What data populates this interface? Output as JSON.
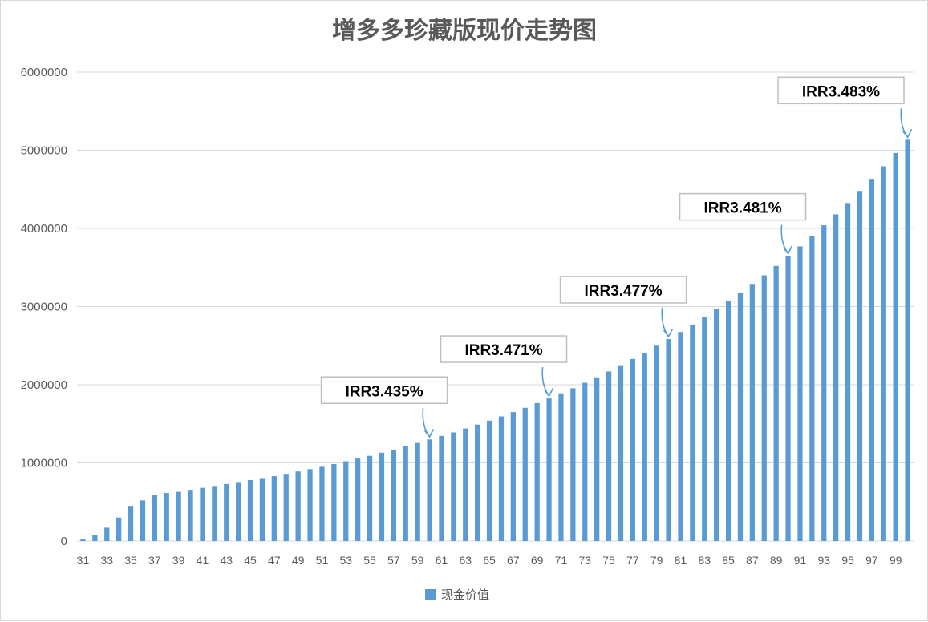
{
  "chart_data": {
    "type": "bar",
    "title": "增多多珍藏版现价走势图",
    "xlabel": "",
    "ylabel": "",
    "ylim": [
      0,
      6000000
    ],
    "yticks": [
      "0",
      "1000000",
      "2000000",
      "3000000",
      "4000000",
      "5000000",
      "6000000"
    ],
    "grid": true,
    "legend_position": "bottom",
    "colors": {
      "bar": "#5b9bd5",
      "grid": "#d9d9d9",
      "text": "#595959"
    },
    "categories": [
      31,
      32,
      33,
      34,
      35,
      36,
      37,
      38,
      39,
      40,
      41,
      42,
      43,
      44,
      45,
      46,
      47,
      48,
      49,
      50,
      51,
      52,
      53,
      54,
      55,
      56,
      57,
      58,
      59,
      60,
      61,
      62,
      63,
      64,
      65,
      66,
      67,
      68,
      69,
      70,
      71,
      72,
      73,
      74,
      75,
      76,
      77,
      78,
      79,
      80,
      81,
      82,
      83,
      84,
      85,
      86,
      87,
      88,
      89,
      90,
      91,
      92,
      93,
      94,
      95,
      96,
      97,
      98,
      99,
      100
    ],
    "xtick_labels": [
      "31",
      "33",
      "35",
      "37",
      "39",
      "41",
      "43",
      "45",
      "47",
      "49",
      "51",
      "53",
      "55",
      "57",
      "59",
      "61",
      "63",
      "65",
      "67",
      "69",
      "71",
      "73",
      "75",
      "77",
      "79",
      "81",
      "83",
      "85",
      "87",
      "89",
      "91",
      "93",
      "95",
      "97",
      "99"
    ],
    "series": [
      {
        "name": "现金价值",
        "values": [
          20000,
          80000,
          170000,
          300000,
          450000,
          520000,
          590000,
          615000,
          630000,
          655000,
          680000,
          705000,
          730000,
          755000,
          780000,
          805000,
          830000,
          860000,
          890000,
          920000,
          950000,
          985000,
          1020000,
          1055000,
          1090000,
          1130000,
          1170000,
          1210000,
          1255000,
          1300000,
          1345000,
          1390000,
          1440000,
          1490000,
          1540000,
          1595000,
          1650000,
          1705000,
          1765000,
          1825000,
          1890000,
          1955000,
          2025000,
          2095000,
          2170000,
          2250000,
          2330000,
          2410000,
          2500000,
          2585000,
          2675000,
          2770000,
          2865000,
          2965000,
          3070000,
          3180000,
          3290000,
          3400000,
          3520000,
          3645000,
          3770000,
          3900000,
          4040000,
          4180000,
          4325000,
          4480000,
          4635000,
          4795000,
          4965000,
          5135000
        ]
      }
    ],
    "annotations": [
      {
        "text": "IRR3.435%",
        "category": 60
      },
      {
        "text": "IRR3.471%",
        "category": 70
      },
      {
        "text": "IRR3.477%",
        "category": 80
      },
      {
        "text": "IRR3.481%",
        "category": 90
      },
      {
        "text": "IRR3.483%",
        "category": 100
      }
    ]
  }
}
